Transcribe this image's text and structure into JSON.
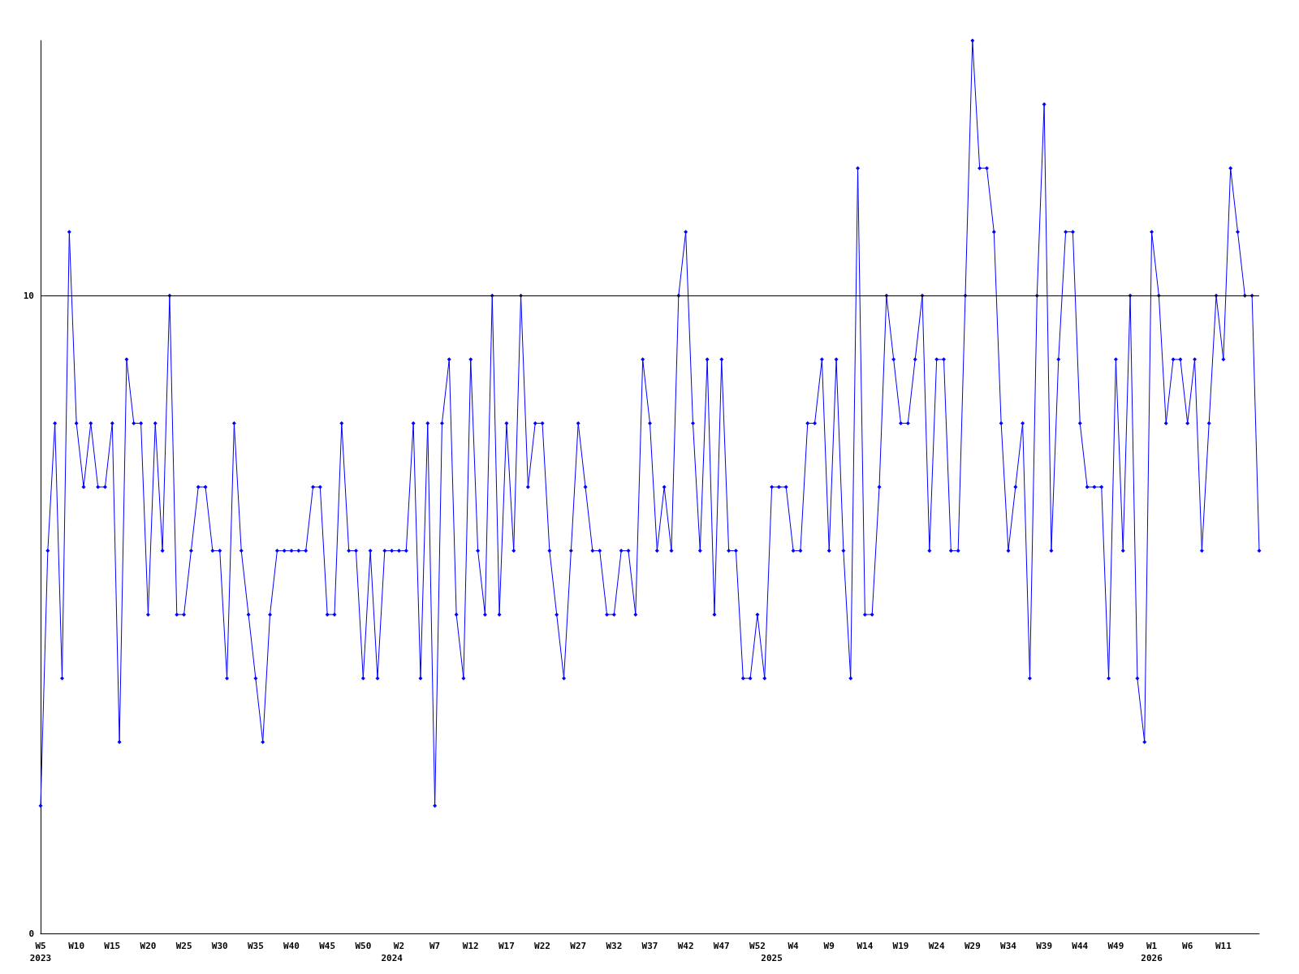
{
  "chart_data": {
    "type": "line",
    "categories": [
      "W5\n2023",
      null,
      null,
      null,
      null,
      "W10",
      null,
      null,
      null,
      null,
      "W15",
      null,
      null,
      null,
      null,
      "W20",
      null,
      null,
      null,
      null,
      "W25",
      null,
      null,
      null,
      null,
      "W30",
      null,
      null,
      null,
      null,
      "W35",
      null,
      null,
      null,
      null,
      "W40",
      null,
      null,
      null,
      null,
      "W45",
      null,
      null,
      null,
      null,
      "W50",
      null,
      null,
      null,
      "\n2024",
      "W2",
      null,
      null,
      null,
      null,
      "W7",
      null,
      null,
      null,
      null,
      "W12",
      null,
      null,
      null,
      null,
      "W17",
      null,
      null,
      null,
      null,
      "W22",
      null,
      null,
      null,
      null,
      "W27",
      null,
      null,
      null,
      null,
      "W32",
      null,
      null,
      null,
      null,
      "W37",
      null,
      null,
      null,
      null,
      "W42",
      null,
      null,
      null,
      null,
      "W47",
      null,
      null,
      null,
      null,
      "W52",
      null,
      "\n2025",
      null,
      null,
      "W4",
      null,
      null,
      null,
      null,
      "W9",
      null,
      null,
      null,
      null,
      "W14",
      null,
      null,
      null,
      null,
      "W19",
      null,
      null,
      null,
      null,
      "W24",
      null,
      null,
      null,
      null,
      "W29",
      null,
      null,
      null,
      null,
      "W34",
      null,
      null,
      null,
      null,
      "W39",
      null,
      null,
      null,
      null,
      "W44",
      null,
      null,
      null,
      null,
      "W49",
      null,
      null,
      null,
      null,
      "W1\n2026",
      null,
      null,
      null,
      null,
      "W6",
      null,
      null,
      null,
      null,
      "W11",
      null,
      null,
      null,
      null,
      null
    ],
    "series": [
      {
        "color": "#0000ff",
        "values": [
          2,
          6,
          8,
          4,
          11,
          8,
          7,
          8,
          7,
          7,
          8,
          3,
          9,
          8,
          8,
          5,
          8,
          6,
          10,
          5,
          5,
          6,
          7,
          7,
          6,
          6,
          4,
          8,
          6,
          5,
          4,
          3,
          5,
          6,
          6,
          6,
          6,
          6,
          7,
          7,
          5,
          5,
          8,
          6,
          6,
          4,
          6,
          4,
          6,
          6,
          6,
          6,
          8,
          4,
          8,
          2,
          8,
          9,
          5,
          4,
          9,
          6,
          5,
          10,
          5,
          8,
          6,
          10,
          7,
          8,
          8,
          6,
          5,
          4,
          6,
          8,
          7,
          6,
          6,
          5,
          5,
          6,
          6,
          5,
          9,
          8,
          6,
          7,
          6,
          10,
          11,
          8,
          6,
          9,
          5,
          9,
          6,
          6,
          4,
          4,
          5,
          4,
          7,
          7,
          7,
          6,
          6,
          8,
          8,
          9,
          6,
          9,
          6,
          4,
          12,
          5,
          5,
          7,
          10,
          9,
          8,
          8,
          9,
          10,
          6,
          9,
          9,
          6,
          6,
          10,
          14,
          12,
          12,
          11,
          8,
          6,
          7,
          8,
          4,
          10,
          13,
          6,
          9,
          11,
          11,
          8,
          7,
          7,
          7,
          4,
          9,
          6,
          10,
          4,
          3,
          11,
          10,
          8,
          9,
          9,
          8,
          9,
          6,
          8,
          10,
          9,
          12,
          11,
          10,
          10,
          6
        ]
      }
    ],
    "ylim": [
      0,
      14
    ],
    "yticks": [
      0,
      10
    ],
    "ref_lines": [
      {
        "axis": "y",
        "value": 10,
        "color": "#000000"
      }
    ],
    "marker": "diamond",
    "line_style": "solid",
    "grid": false
  }
}
